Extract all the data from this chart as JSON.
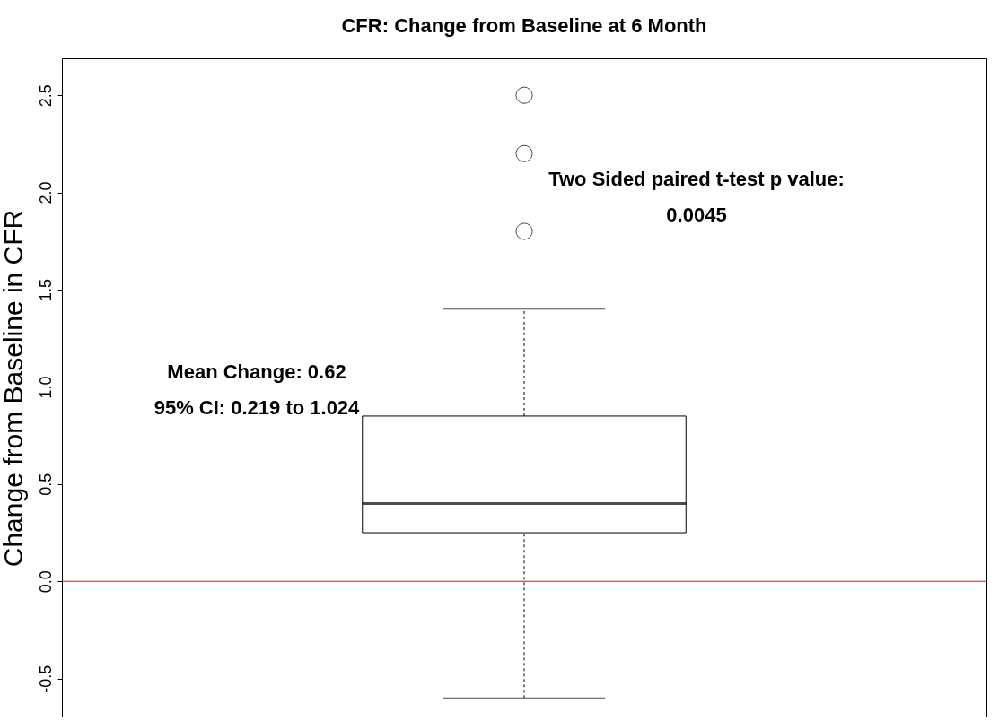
{
  "chart_data": {
    "type": "box",
    "title": "CFR: Change from Baseline at 6 Month",
    "ylabel": "Change from Baseline in CFR",
    "categories": [
      null
    ],
    "boxes": [
      {
        "low": -0.6,
        "q1": 0.25,
        "median": 0.4,
        "q3": 0.85,
        "high": 1.4,
        "outliers": [
          1.8,
          2.2,
          2.5
        ]
      }
    ],
    "ylim": [
      -0.7,
      2.69
    ],
    "yticks": [
      {
        "value": -0.5,
        "label": "-0.5"
      },
      {
        "value": 0,
        "label": "0.0"
      },
      {
        "value": 0.5,
        "label": "0.5"
      },
      {
        "value": 1,
        "label": "1.0"
      },
      {
        "value": 1.5,
        "label": "1.5"
      },
      {
        "value": 2,
        "label": "2.0"
      },
      {
        "value": 2.5,
        "label": "2.5"
      }
    ],
    "ref_lines": [
      {
        "axis": "y",
        "value": 0,
        "color": "#ff0000"
      }
    ],
    "annotations": [
      "Mean Change: 0.62",
      "95% CI:  0.219 to 1.024",
      "Two Sided paired t-test p value:",
      "0.0045"
    ],
    "grid": false
  }
}
